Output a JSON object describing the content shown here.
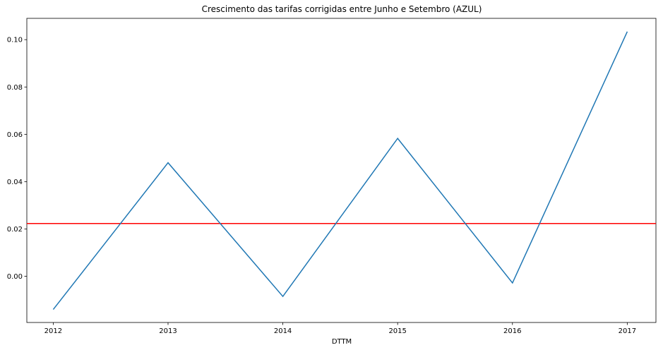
{
  "chart_data": {
    "type": "line",
    "title": "Crescimento das tarifas corrigidas entre Junho e Setembro (AZUL)",
    "xlabel": "DTTM",
    "ylabel": "",
    "x": [
      "2012",
      "2013",
      "2014",
      "2015",
      "2016",
      "2017"
    ],
    "series": [
      {
        "values": [
          -0.014,
          0.048,
          -0.0085,
          0.0583,
          -0.0028,
          0.1034
        ],
        "color": "#1f77b4"
      }
    ],
    "reference_line": {
      "value": 0.0223,
      "color": "#ff0000",
      "orientation": "horizontal"
    },
    "xlim": [
      2011.77,
      2017.25
    ],
    "ylim": [
      -0.0195,
      0.109
    ],
    "yticks": [
      "0.00",
      "0.02",
      "0.04",
      "0.06",
      "0.08",
      "0.10"
    ],
    "grid": false,
    "legend": "none"
  }
}
